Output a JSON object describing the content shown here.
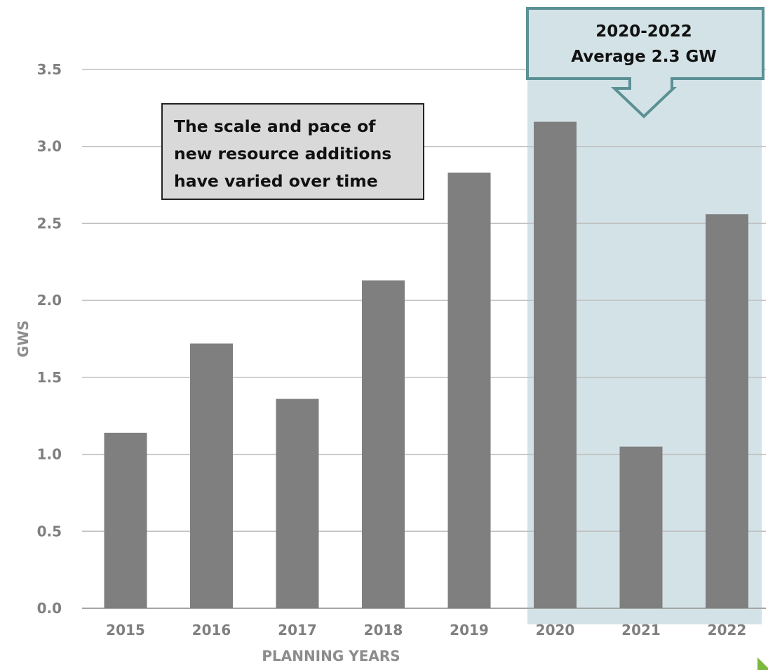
{
  "chart_data": {
    "type": "bar",
    "categories": [
      "2015",
      "2016",
      "2017",
      "2018",
      "2019",
      "2020",
      "2021",
      "2022"
    ],
    "values": [
      1.14,
      1.72,
      1.36,
      2.13,
      2.83,
      3.16,
      1.05,
      2.56
    ],
    "xlabel": "PLANNING YEARS",
    "ylabel": "GWS",
    "ylim": [
      0,
      3.5
    ],
    "yticks": [
      "0.0",
      "0.5",
      "1.0",
      "1.5",
      "2.0",
      "2.5",
      "3.0",
      "3.5"
    ],
    "grid": true,
    "bar_color": "#7f7f7f",
    "highlight": {
      "categories": [
        "2020",
        "2021",
        "2022"
      ],
      "color": "#d3e2e6"
    },
    "annotations": {
      "note_lines": [
        "The scale and pace of",
        "new resource additions",
        "have varied over time"
      ],
      "callout_lines": [
        "2020-2022",
        "Average 2.3 GW"
      ],
      "callout_border_color": "#5b9095"
    }
  }
}
